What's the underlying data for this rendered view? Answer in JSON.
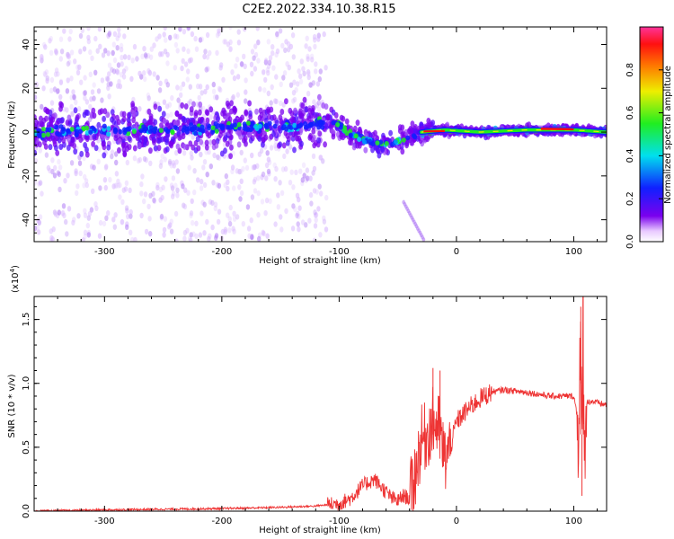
{
  "title": "C2E2.2022.334.10.38.R15",
  "chart_data": [
    {
      "type": "heatmap",
      "xlabel": "Height of straight line (km)",
      "ylabel": "Frequency (Hz)",
      "xlim": [
        -360,
        128
      ],
      "ylim": [
        -50,
        48
      ],
      "x_ticks": [
        -300,
        -200,
        -100,
        0,
        100
      ],
      "y_ticks": [
        -40,
        -20,
        0,
        20,
        40
      ],
      "ridge": [
        {
          "x": -360,
          "y": 0
        },
        {
          "x": -250,
          "y": 1
        },
        {
          "x": -200,
          "y": 2
        },
        {
          "x": -130,
          "y": 3
        },
        {
          "x": -110,
          "y": 5
        },
        {
          "x": -100,
          "y": 3
        },
        {
          "x": -90,
          "y": -1
        },
        {
          "x": -75,
          "y": -4
        },
        {
          "x": -60,
          "y": -6
        },
        {
          "x": -45,
          "y": -3
        },
        {
          "x": -30,
          "y": 0
        },
        {
          "x": -10,
          "y": 1
        },
        {
          "x": 20,
          "y": 0
        },
        {
          "x": 60,
          "y": 1
        },
        {
          "x": 100,
          "y": 1
        },
        {
          "x": 128,
          "y": 0
        }
      ],
      "colorbar": {
        "label": "Normalized spectral amplitude",
        "range": [
          0,
          1
        ],
        "ticks": [
          0.0,
          0.2,
          0.4,
          0.6,
          0.8
        ]
      }
    },
    {
      "type": "line",
      "xlabel": "Height of straight line (km)",
      "ylabel": "SNR (10 * v/v)",
      "multiplier": "(x10^4)",
      "multiplier_base": "(x10",
      "multiplier_exp": "4",
      "xlim": [
        -360,
        128
      ],
      "ylim": [
        0,
        1.68
      ],
      "x_ticks": [
        -300,
        -200,
        -100,
        0,
        100
      ],
      "y_ticks": [
        0.0,
        0.5,
        1.0,
        1.5
      ],
      "color": "#ee3333",
      "series": [
        {
          "x": [
            -360,
            -300,
            -250,
            -200,
            -150,
            -120,
            -100,
            -90,
            -80,
            -70,
            -60,
            -55,
            -50,
            -45,
            -40,
            -35,
            -30,
            -25,
            -20,
            -15,
            -10,
            -5,
            0,
            10,
            20,
            30,
            40,
            60,
            80,
            100,
            104,
            106,
            107,
            108,
            109,
            110,
            115,
            128
          ],
          "y": [
            0.0,
            0.01,
            0.015,
            0.02,
            0.03,
            0.04,
            0.06,
            0.1,
            0.2,
            0.25,
            0.15,
            0.1,
            0.08,
            0.12,
            0.1,
            0.3,
            0.55,
            0.6,
            0.7,
            0.65,
            0.4,
            0.5,
            0.7,
            0.8,
            0.88,
            0.93,
            0.95,
            0.93,
            0.9,
            0.9,
            0.7,
            1.3,
            0.2,
            1.6,
            0.15,
            0.85,
            0.86,
            0.83
          ]
        }
      ]
    }
  ]
}
